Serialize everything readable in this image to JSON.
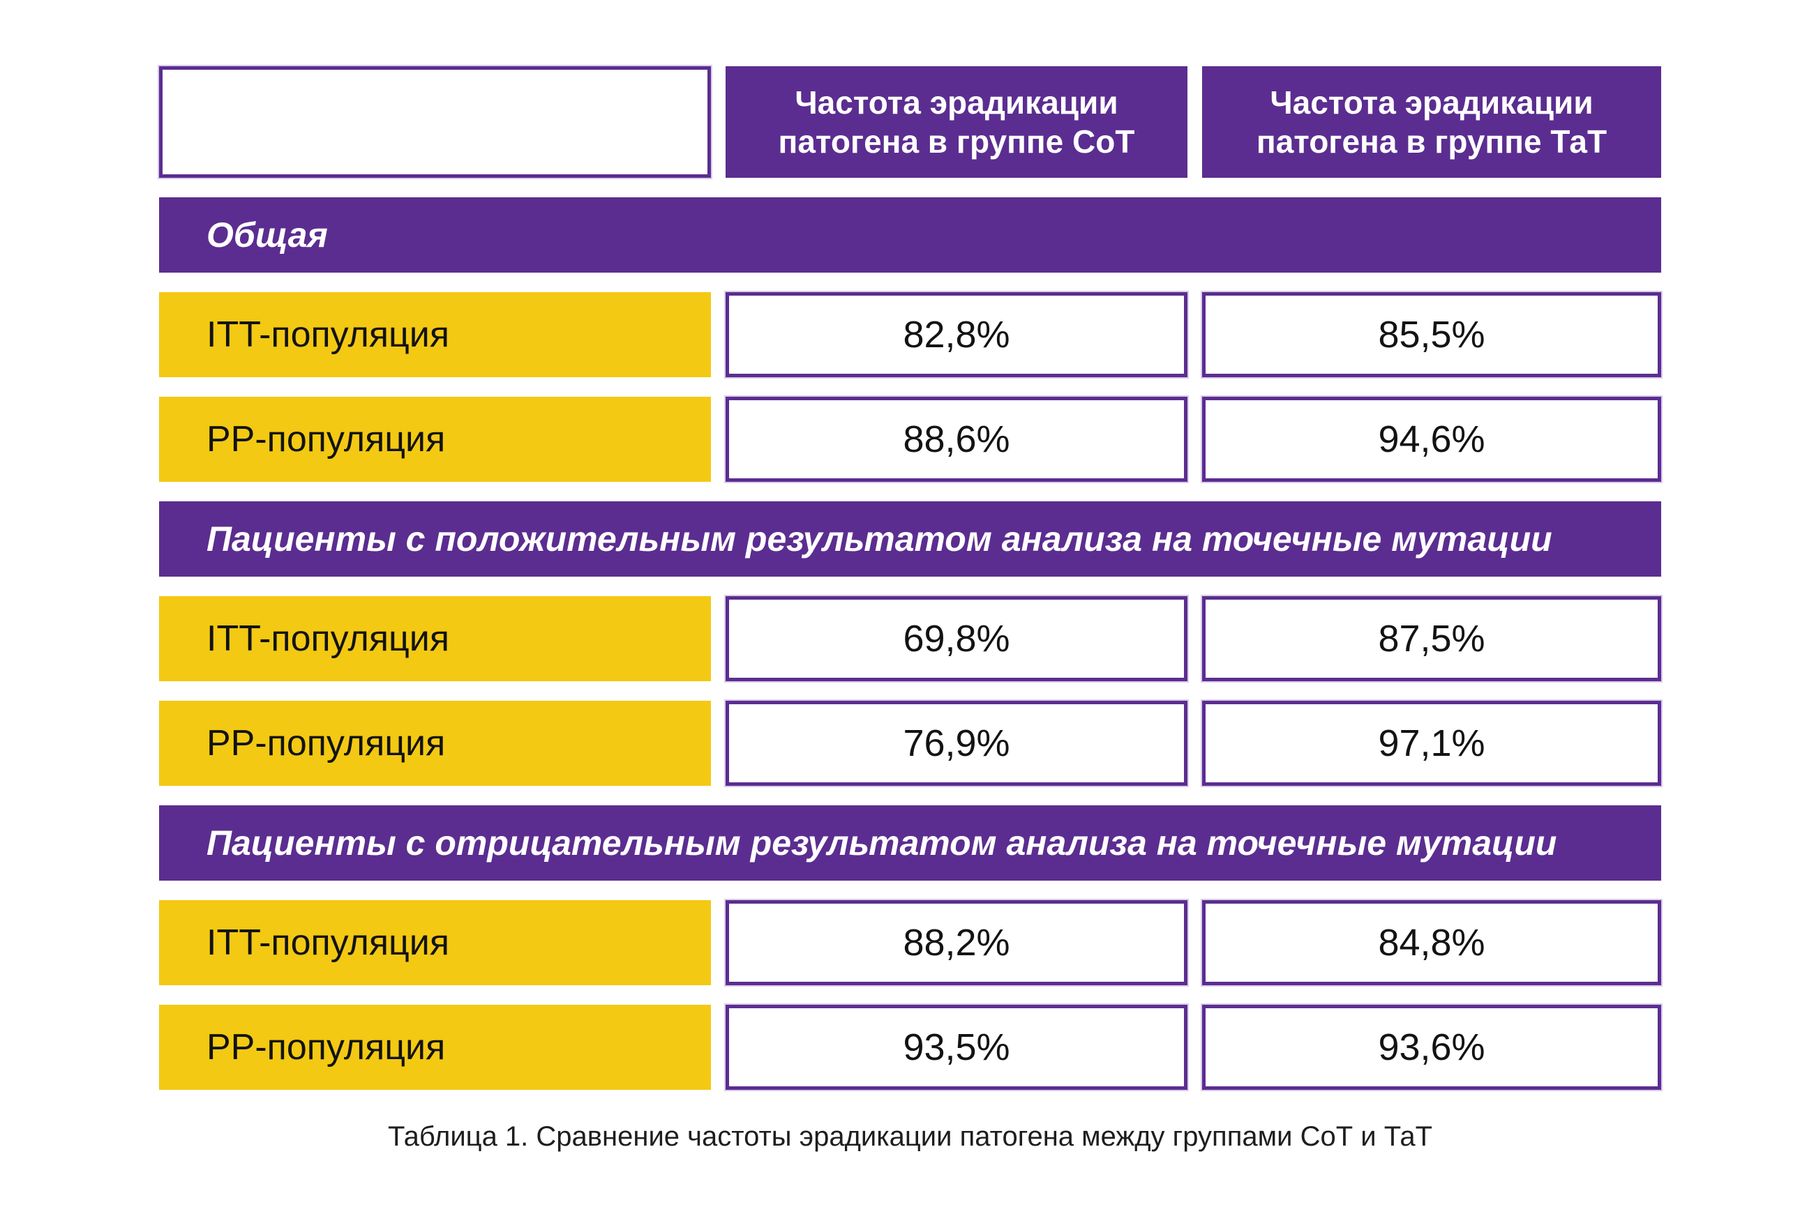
{
  "colors": {
    "purple": "#5b2d90",
    "yellow": "#f3c913",
    "cell_border": "#5b2d90",
    "text": "#131313",
    "header_text": "#ffffff"
  },
  "caption": "Таблица 1. Сравнение частоты эрадикации патогена между группами СоТ и ТаТ",
  "chart_data": {
    "type": "table",
    "title": "Таблица 1. Сравнение частоты эрадикации патогена между группами СоТ и ТаТ",
    "columns": [
      "",
      "Частота эрадикации патогена в группе СоТ",
      "Частота эрадикации патогена в группе ТаТ"
    ],
    "sections": [
      {
        "title": "Общая",
        "rows": [
          {
            "label": "ITT-популяция",
            "values": [
              "82,8%",
              "85,5%"
            ]
          },
          {
            "label": "PP-популяция",
            "values": [
              "88,6%",
              "94,6%"
            ]
          }
        ]
      },
      {
        "title": "Пациенты с положительным результатом анализа на точечные мутации",
        "rows": [
          {
            "label": "ITT-популяция",
            "values": [
              "69,8%",
              "87,5%"
            ]
          },
          {
            "label": "PP-популяция",
            "values": [
              "76,9%",
              "97,1%"
            ]
          }
        ]
      },
      {
        "title": "Пациенты с отрицательным результатом анализа на точечные мутации",
        "rows": [
          {
            "label": "ITT-популяция",
            "values": [
              "88,2%",
              "84,8%"
            ]
          },
          {
            "label": "PP-популяция",
            "values": [
              "93,5%",
              "93,6%"
            ]
          }
        ]
      }
    ],
    "values_numeric": {
      "CoT": [
        82.8,
        88.6,
        69.8,
        76.9,
        88.2,
        93.5
      ],
      "TaT": [
        85.5,
        94.6,
        87.5,
        97.1,
        84.8,
        93.6
      ]
    }
  }
}
